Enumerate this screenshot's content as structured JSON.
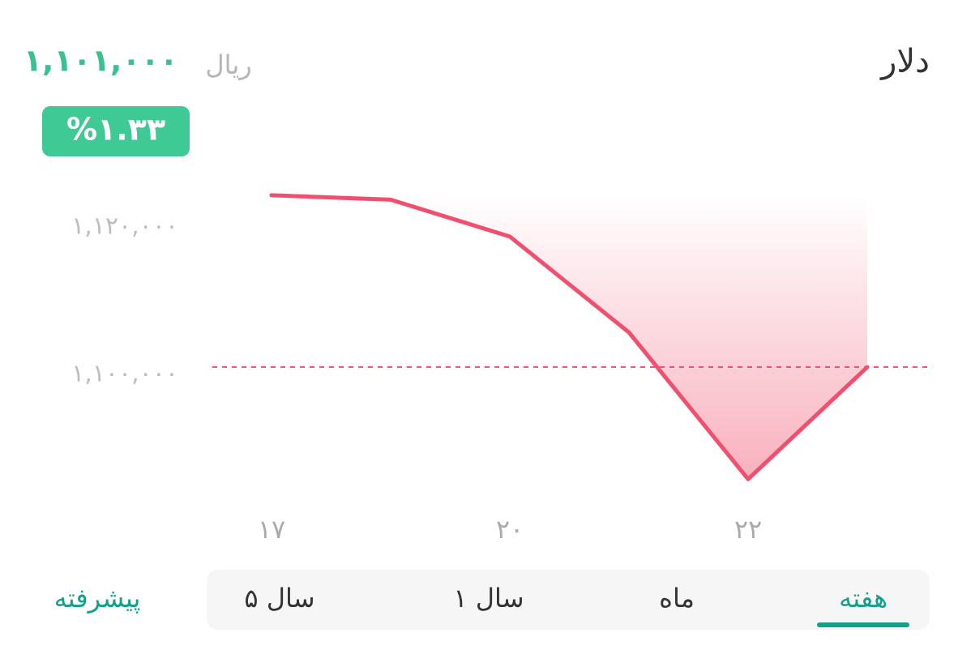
{
  "header": {
    "title": "دلار",
    "currency": "ریال",
    "price": "۱,۱۰۱,۰۰۰",
    "change": "%۱.۳۳"
  },
  "tabs": {
    "items": [
      "هفته",
      "ماه",
      "۱ سال",
      "۵ سال"
    ],
    "selected": 0,
    "advanced": "پیشرفته"
  },
  "chart_data": {
    "type": "line",
    "categories": [
      "۱۷",
      null,
      "۲۰",
      null,
      "۲۲",
      null
    ],
    "values": [
      1124300,
      1123700,
      1118700,
      1105700,
      1085800,
      1101000
    ],
    "color": "#f0506e",
    "ylim": [
      1080000,
      1130000
    ],
    "yticks": [
      {
        "value": 1100000,
        "label": "۱,۱۰۰,۰۰۰"
      },
      {
        "value": 1120000,
        "label": "۱,۱۲۰,۰۰۰"
      }
    ]
  }
}
